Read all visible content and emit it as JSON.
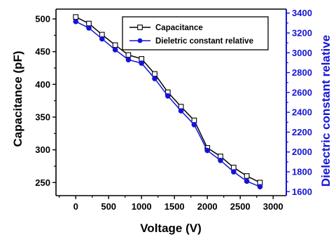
{
  "chart_data": {
    "type": "line",
    "x": [
      0,
      200,
      400,
      600,
      800,
      1000,
      1200,
      1400,
      1600,
      1800,
      2000,
      2200,
      2400,
      2600,
      2800
    ],
    "xlabel": "Voltage (V)",
    "xlim": [
      -300,
      3200
    ],
    "xticks": [
      0,
      500,
      1000,
      1500,
      2000,
      2500,
      3000
    ],
    "ylabel": "Capacitance (pF)",
    "ylim": [
      230,
      515
    ],
    "yticks": [
      250,
      300,
      350,
      400,
      450,
      500
    ],
    "y2label": "Dielectric constant relative",
    "y2lim": [
      1560,
      3440
    ],
    "y2ticks": [
      1600,
      1800,
      2000,
      2200,
      2400,
      2600,
      2800,
      3000,
      3200,
      3400
    ],
    "legend_position": "top-right",
    "series": [
      {
        "name": "Capacitance",
        "axis": "left",
        "marker": "open-square",
        "color": "#000000",
        "values": [
          503,
          493,
          476,
          460,
          445,
          439,
          416,
          388,
          366,
          345,
          303,
          290,
          273,
          260,
          250
        ]
      },
      {
        "name": "Dieletric constant relative",
        "axis": "right",
        "marker": "filled-circle",
        "color": "#1414d8",
        "values": [
          3315,
          3250,
          3140,
          3030,
          2930,
          2895,
          2740,
          2565,
          2415,
          2275,
          2015,
          1915,
          1800,
          1705,
          1650
        ]
      }
    ]
  }
}
